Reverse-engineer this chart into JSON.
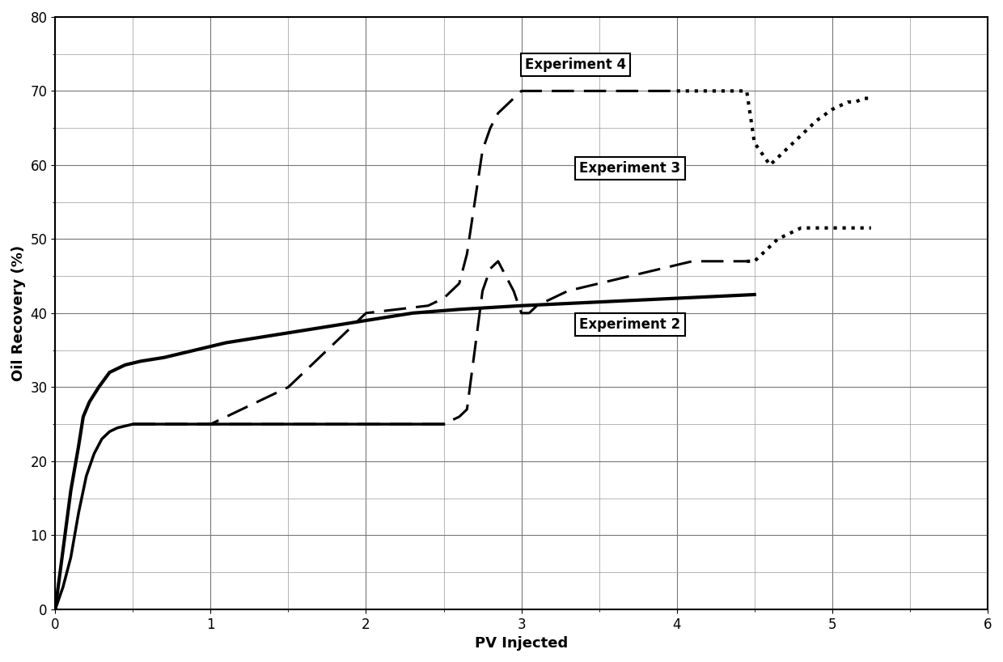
{
  "title": "",
  "xlabel": "PV Injected",
  "ylabel": "Oil Recovery (%)",
  "xlim": [
    0,
    6
  ],
  "ylim": [
    0,
    80
  ],
  "xticks": [
    0,
    1,
    2,
    3,
    4,
    5,
    6
  ],
  "yticks": [
    0,
    10,
    20,
    30,
    40,
    50,
    60,
    70,
    80
  ],
  "exp1_x": [
    0,
    0.05,
    0.1,
    0.15,
    0.18,
    0.22,
    0.28,
    0.35,
    0.45,
    0.55,
    0.7,
    0.9,
    1.1,
    1.4,
    1.7,
    2.0,
    2.3,
    2.6,
    3.0,
    3.5,
    4.0,
    4.5
  ],
  "exp1_y": [
    0,
    8,
    16,
    22,
    26,
    28,
    30,
    32,
    33,
    33.5,
    34,
    35,
    36,
    37,
    38,
    39,
    40,
    40.5,
    41,
    41.5,
    42,
    42.5
  ],
  "exp1_lw": 3.0,
  "exp2_x": [
    0,
    0.05,
    0.1,
    0.15,
    0.2,
    0.25,
    0.3,
    0.35,
    0.4,
    0.5,
    0.6,
    2.5
  ],
  "exp2_y": [
    0,
    3,
    7,
    13,
    18,
    21,
    23,
    24,
    24.5,
    25,
    25,
    25
  ],
  "exp2_lw": 2.5,
  "exp3_x": [
    0.5,
    1.0,
    1.5,
    2.0,
    2.4,
    2.5,
    2.6,
    2.65,
    2.7,
    2.75,
    2.8,
    2.85,
    2.9,
    2.95,
    3.0,
    3.05,
    3.1,
    3.2,
    3.3,
    3.5,
    3.7,
    3.9,
    4.1,
    4.3,
    4.45
  ],
  "exp3_y": [
    25,
    25,
    25,
    25,
    25,
    25,
    26,
    27,
    35,
    43,
    46,
    47,
    45,
    43,
    40,
    40,
    41,
    42,
    43,
    44,
    45,
    46,
    47,
    47,
    47
  ],
  "exp3_lw": 2.2,
  "exp4_x": [
    0.5,
    1.0,
    1.5,
    2.0,
    2.4,
    2.5,
    2.6,
    2.65,
    2.7,
    2.75,
    2.8,
    2.85,
    2.9,
    2.95,
    3.0,
    3.1,
    3.2,
    3.5,
    4.0
  ],
  "exp4_y": [
    25,
    25,
    30,
    40,
    41,
    42,
    44,
    48,
    55,
    62,
    65,
    67,
    68,
    69,
    70,
    70,
    70,
    70,
    70
  ],
  "exp4_lw": 2.2,
  "exp3_dot_x": [
    4.45,
    4.5,
    4.55,
    4.6,
    4.65,
    4.7,
    4.75,
    4.8,
    4.85,
    4.9,
    4.95,
    5.0,
    5.05,
    5.1,
    5.15,
    5.2,
    5.25
  ],
  "exp3_dot_y": [
    47,
    47,
    48,
    49,
    50,
    50.5,
    51,
    51.5,
    51.5,
    51.5,
    51.5,
    51.5,
    51.5,
    51.5,
    51.5,
    51.5,
    51.5
  ],
  "exp4_dot_x": [
    4.0,
    4.1,
    4.2,
    4.3,
    4.4,
    4.45,
    4.5,
    4.6,
    4.7,
    4.8,
    4.9,
    5.0,
    5.05,
    5.1,
    5.15,
    5.2,
    5.25
  ],
  "exp4_dot_y": [
    70,
    70,
    70,
    70,
    70,
    70,
    63,
    60,
    62,
    64,
    66,
    67.5,
    68,
    68.5,
    68.5,
    69,
    69
  ],
  "ann_exp4_x": 3.35,
  "ann_exp4_y": 73.5,
  "ann_exp3_x": 3.7,
  "ann_exp3_y": 59.5,
  "ann_exp2_x": 3.7,
  "ann_exp2_y": 38.5,
  "background_color": "#ffffff",
  "line_color": "#000000",
  "fontsize_label": 13,
  "fontsize_tick": 12,
  "fontsize_ann": 12
}
